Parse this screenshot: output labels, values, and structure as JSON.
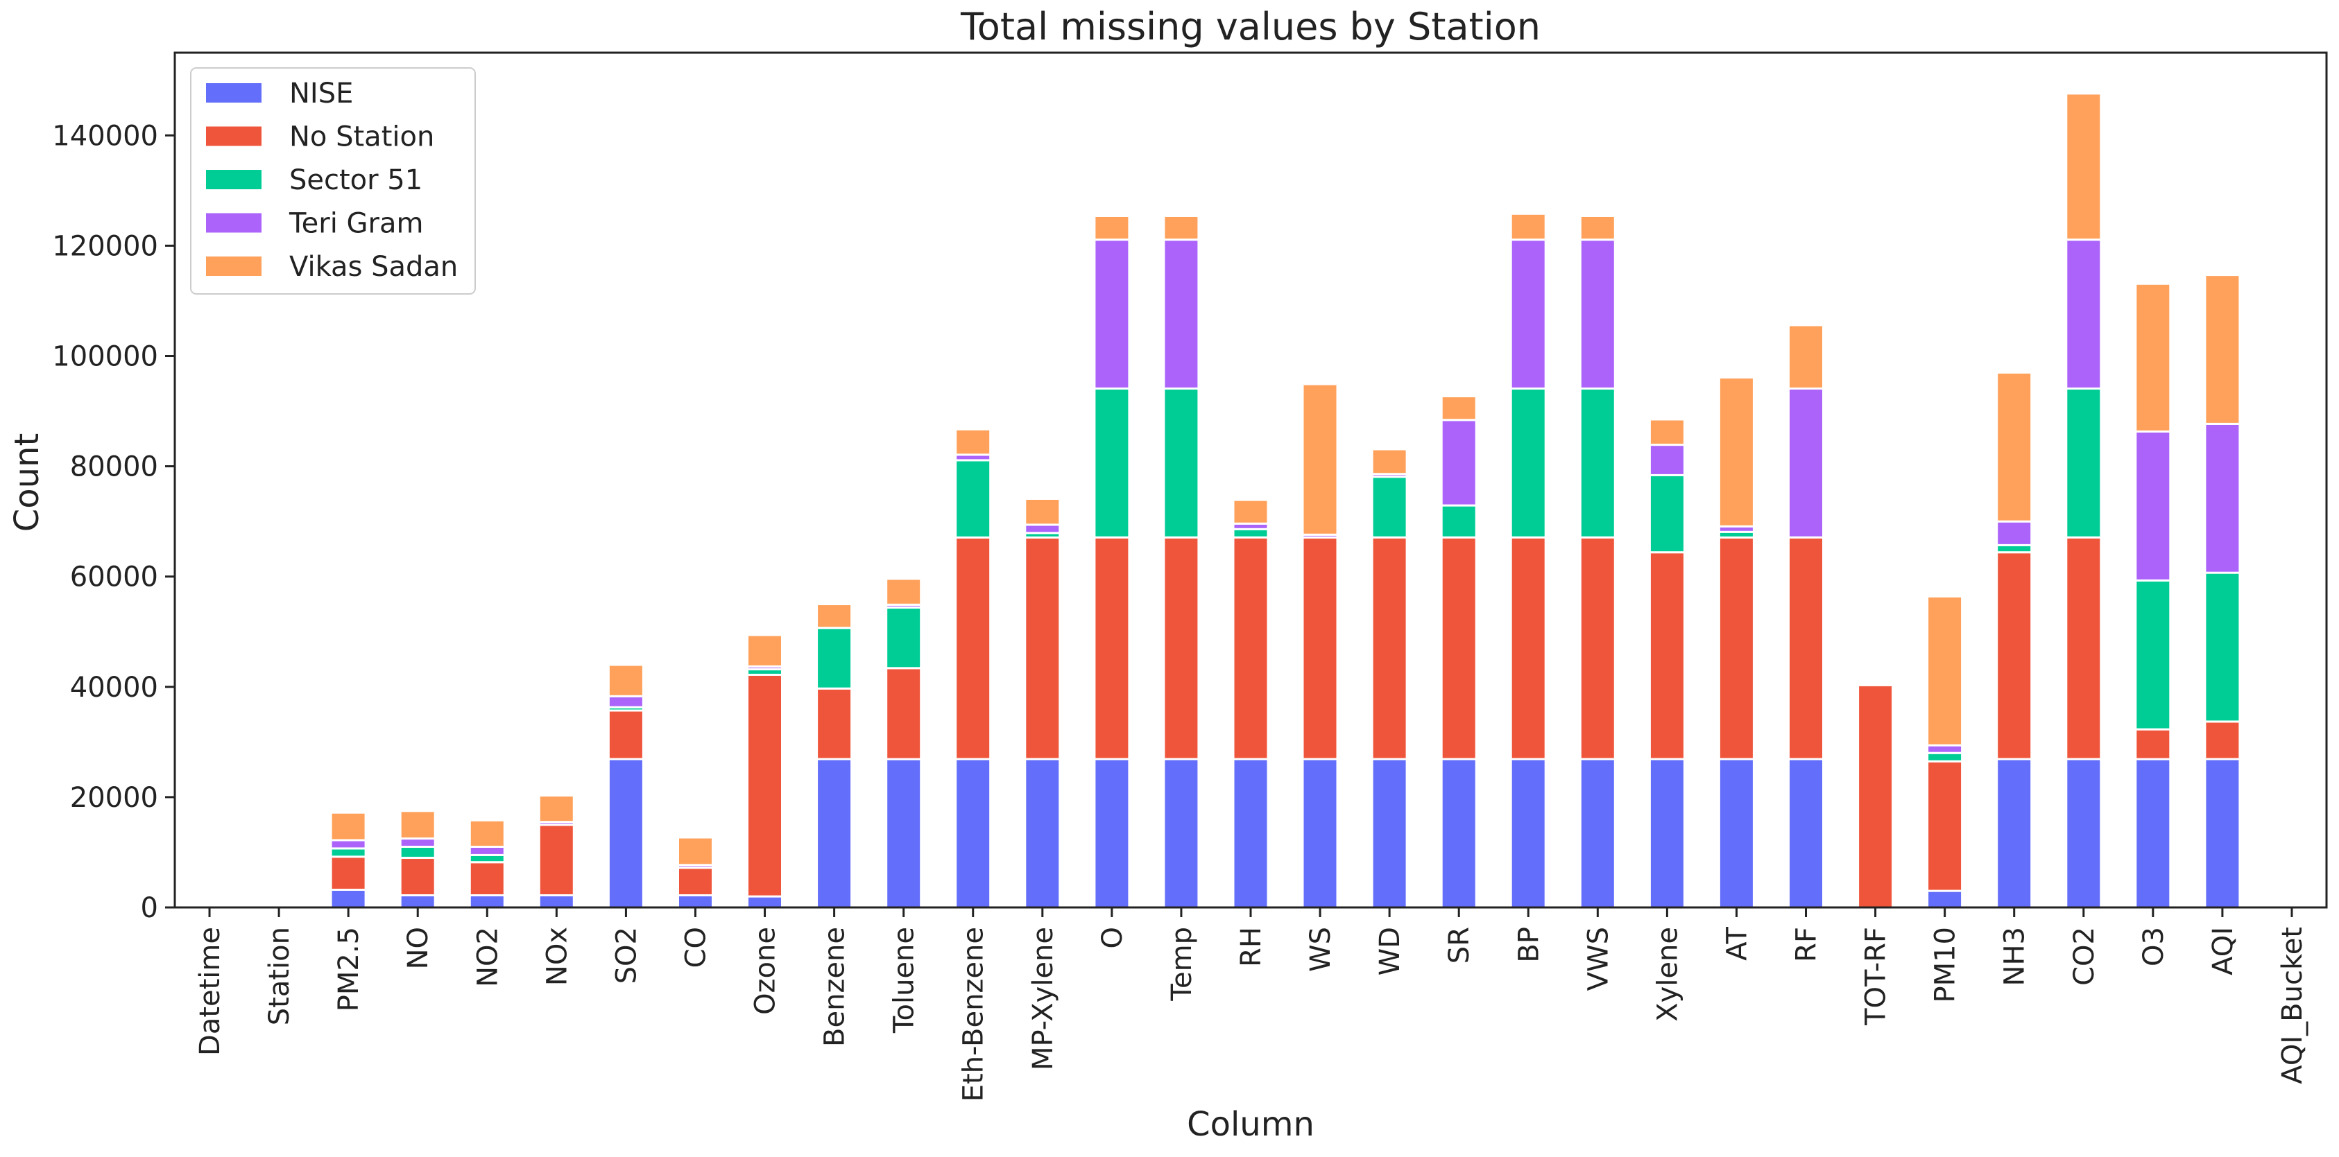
{
  "chart_data": {
    "type": "bar",
    "stacked": true,
    "title": "Total missing values by Station",
    "xlabel": "Column",
    "ylabel": "Count",
    "ylim": [
      0,
      155000
    ],
    "yticks": [
      0,
      20000,
      40000,
      60000,
      80000,
      100000,
      120000,
      140000
    ],
    "legend_position": "top-left",
    "grid": false,
    "categories": [
      "Datetime",
      "Station",
      "PM2.5",
      "NO",
      "NO2",
      "NOx",
      "SO2",
      "CO",
      "Ozone",
      "Benzene",
      "Toluene",
      "Eth-Benzene",
      "MP-Xylene",
      "O",
      "Temp",
      "RH",
      "WS",
      "WD",
      "SR",
      "BP",
      "VWS",
      "Xylene",
      "AT",
      "RF",
      "TOT-RF",
      "PM10",
      "NH3",
      "CO2",
      "O3",
      "AQI",
      "AQI_Bucket"
    ],
    "series": [
      {
        "name": "NISE",
        "color": "#636efa",
        "values": [
          0,
          0,
          3200,
          2200,
          2200,
          2200,
          26900,
          2200,
          2000,
          26900,
          26900,
          26900,
          26900,
          26900,
          26900,
          26900,
          26900,
          26900,
          26900,
          26900,
          26900,
          26900,
          26900,
          26900,
          0,
          3000,
          26900,
          26900,
          26900,
          26900,
          0
        ]
      },
      {
        "name": "No Station",
        "color": "#ef553b",
        "values": [
          0,
          0,
          6000,
          6800,
          6000,
          12800,
          8800,
          5000,
          40200,
          12800,
          16500,
          40200,
          40200,
          40200,
          40200,
          40200,
          40200,
          40200,
          40200,
          40200,
          40200,
          37500,
          40200,
          40200,
          40300,
          23500,
          37500,
          40200,
          5400,
          6800,
          0
        ]
      },
      {
        "name": "Sector 51",
        "color": "#00cc96",
        "values": [
          0,
          0,
          1500,
          2000,
          1300,
          0,
          600,
          0,
          1000,
          11000,
          11000,
          14000,
          800,
          27000,
          27000,
          1500,
          0,
          11000,
          5800,
          27000,
          27000,
          14000,
          1000,
          0,
          0,
          1500,
          1300,
          27000,
          27000,
          27000,
          0
        ]
      },
      {
        "name": "Teri Gram",
        "color": "#ab63fa",
        "values": [
          0,
          0,
          1500,
          1500,
          1500,
          500,
          2000,
          500,
          500,
          0,
          500,
          1000,
          1500,
          27000,
          27000,
          1000,
          500,
          500,
          15500,
          27000,
          27000,
          5500,
          1000,
          27000,
          0,
          1400,
          4300,
          27000,
          27000,
          27000,
          0
        ]
      },
      {
        "name": "Vikas Sadan",
        "color": "#ffa15a",
        "values": [
          0,
          0,
          5000,
          5000,
          4800,
          4800,
          5700,
          5000,
          5700,
          4300,
          4700,
          4600,
          4700,
          4300,
          4300,
          4300,
          27300,
          4500,
          4300,
          4700,
          4300,
          4600,
          27000,
          11500,
          0,
          27000,
          27000,
          26500,
          26800,
          27000,
          0
        ]
      }
    ]
  }
}
